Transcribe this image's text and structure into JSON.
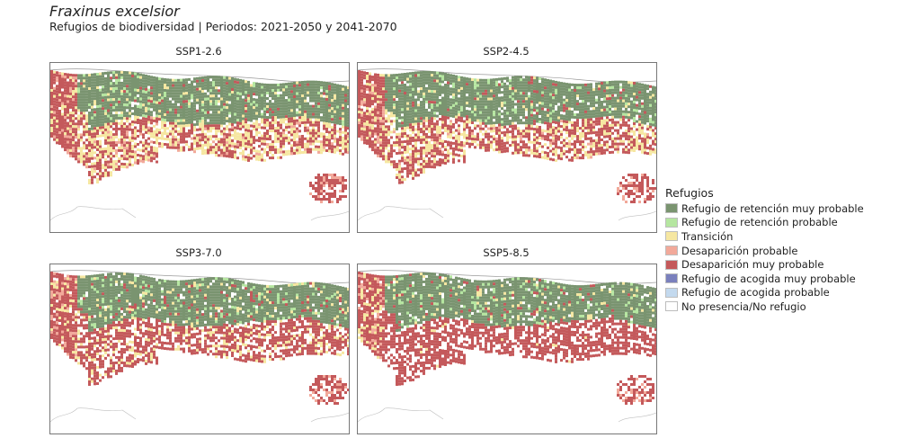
{
  "title": "Fraxinus excelsior",
  "subtitle": "Refugios de biodiversidad | Periodos: 2021-2050 y 2041-2070",
  "panels": [
    {
      "label": "SSP1-2.6"
    },
    {
      "label": "SSP2-4.5"
    },
    {
      "label": "SSP3-7.0"
    },
    {
      "label": "SSP5-8.5"
    }
  ],
  "legend": {
    "title": "Refugios",
    "items": [
      {
        "label": "Refugio de retención muy probable",
        "color": "#7a9470"
      },
      {
        "label": "Refugio de retención probable",
        "color": "#b5e6a0"
      },
      {
        "label": "Transición",
        "color": "#f6e7a1"
      },
      {
        "label": "Desaparición probable",
        "color": "#f2a99a"
      },
      {
        "label": "Desaparición muy probable",
        "color": "#c4595b"
      },
      {
        "label": "Refugio de acogida muy probable",
        "color": "#7a80bd"
      },
      {
        "label": "Refugio de acogida probable",
        "color": "#c3d9ee"
      },
      {
        "label": "No presencia/No refugio",
        "color": "#ffffff"
      }
    ]
  }
}
